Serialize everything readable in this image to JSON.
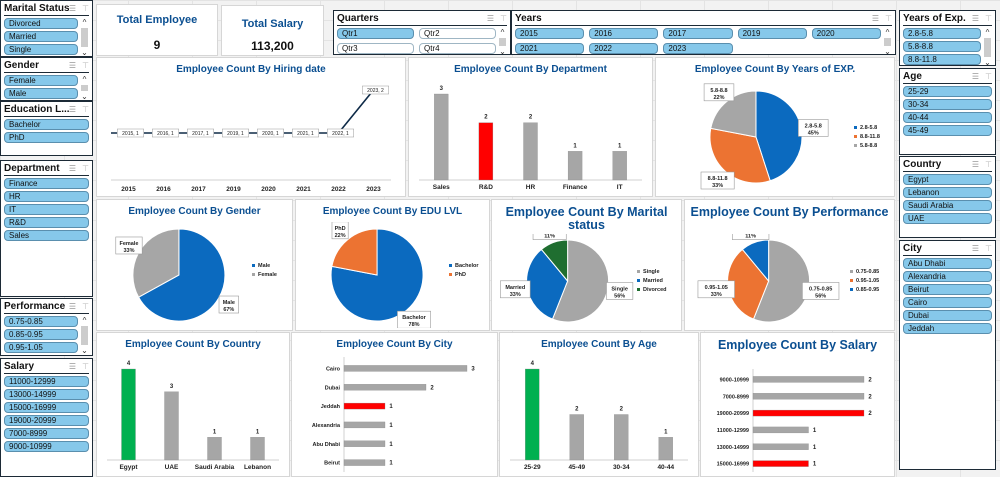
{
  "colors": {
    "blue": "#0b6abf",
    "orange": "#ec7332",
    "gray": "#a6a6a6",
    "green": "#1f6e30",
    "red": "#ff0000",
    "bar_green": "#00b050",
    "title_blue": "#0b4f91",
    "chip": "#86c8ea"
  },
  "icons": {
    "multiselect": "multi-select-icon",
    "clear_filter": "clear-filter-icon",
    "scroll_up": "chevron-up-icon",
    "scroll_down": "chevron-down-icon"
  },
  "icon_glyphs": {
    "multiselect": "☰",
    "clear_filter": "⊤",
    "up": "^",
    "down": "⌄"
  },
  "slicers": {
    "marital": {
      "title": "Marital Status",
      "items": [
        "Divorced",
        "Married",
        "Single"
      ]
    },
    "gender": {
      "title": "Gender",
      "items": [
        "Female",
        "Male"
      ]
    },
    "education": {
      "title": "Education L...",
      "items": [
        "Bachelor",
        "PhD"
      ]
    },
    "department": {
      "title": "Department",
      "items": [
        "Finance",
        "HR",
        "IT",
        "R&D",
        "Sales"
      ]
    },
    "performance": {
      "title": "Performance",
      "items": [
        "0.75-0.85",
        "0.85-0.95",
        "0.95-1.05"
      ]
    },
    "salary": {
      "title": "Salary",
      "items": [
        "11000-12999",
        "13000-14999",
        "15000-16999",
        "19000-20999",
        "7000-8999",
        "9000-10999"
      ]
    },
    "quarters": {
      "title": "Quarters",
      "items": [
        "Qtr1",
        "Qtr2",
        "Qtr3",
        "Qtr4"
      ],
      "selected": [
        "Qtr1"
      ]
    },
    "years": {
      "title": "Years",
      "items": [
        "2015",
        "2016",
        "2017",
        "2019",
        "2020",
        "2021",
        "2022",
        "2023"
      ]
    },
    "years_exp": {
      "title": "Years of Exp.",
      "items": [
        "2.8-5.8",
        "5.8-8.8",
        "8.8-11.8"
      ]
    },
    "age": {
      "title": "Age",
      "items": [
        "25-29",
        "30-34",
        "40-44",
        "45-49"
      ]
    },
    "country": {
      "title": "Country",
      "items": [
        "Egypt",
        "Lebanon",
        "Saudi Arabia",
        "UAE"
      ]
    },
    "city": {
      "title": "City",
      "items": [
        "Abu Dhabi",
        "Alexandria",
        "Beirut",
        "Cairo",
        "Dubai",
        "Jeddah"
      ]
    }
  },
  "kpis": {
    "total_employee": {
      "label": "Total Employee",
      "value": "9"
    },
    "total_salary": {
      "label": "Total Salary",
      "value": "113,200"
    }
  },
  "chart_data": [
    {
      "id": "hiring",
      "type": "line",
      "title": "Employee Count By Hiring date",
      "categories": [
        "2015",
        "2016",
        "2017",
        "2019",
        "2020",
        "2021",
        "2022",
        "2023"
      ],
      "values": [
        1,
        1,
        1,
        1,
        1,
        1,
        1,
        2
      ],
      "data_labels": [
        "2015, 1",
        "2016, 1",
        "2017, 1",
        "2019, 1",
        "2020, 1",
        "2021, 1",
        "2022, 1",
        "2023, 2"
      ]
    },
    {
      "id": "department",
      "type": "bar",
      "title": "Employee Count By Department",
      "categories": [
        "Sales",
        "R&D",
        "HR",
        "Finance",
        "IT"
      ],
      "values": [
        3,
        2,
        2,
        1,
        1
      ],
      "highlight": {
        "R&D": "red"
      }
    },
    {
      "id": "years_exp",
      "type": "pie",
      "title": "Employee Count By Years of EXP.",
      "slices": [
        {
          "label": "2.8-5.8",
          "value": 45,
          "color": "blue"
        },
        {
          "label": "8.8-11.8",
          "value": 33,
          "color": "orange"
        },
        {
          "label": "5.8-8.8",
          "value": 22,
          "color": "gray"
        }
      ],
      "legend": "right"
    },
    {
      "id": "gender",
      "type": "pie",
      "title": "Employee Count By Gender",
      "slices": [
        {
          "label": "Male",
          "value": 67,
          "color": "blue"
        },
        {
          "label": "Female",
          "value": 33,
          "color": "gray"
        }
      ],
      "legend": "right"
    },
    {
      "id": "edu",
      "type": "pie",
      "title": "Employee Count By EDU LVL",
      "slices": [
        {
          "label": "Bachelor",
          "value": 78,
          "color": "blue"
        },
        {
          "label": "PhD",
          "value": 22,
          "color": "orange"
        }
      ],
      "legend": "right"
    },
    {
      "id": "marital",
      "type": "pie",
      "title": "Employee Count By Marital status",
      "slices": [
        {
          "label": "Single",
          "value": 56,
          "color": "gray"
        },
        {
          "label": "Married",
          "value": 33,
          "color": "blue"
        },
        {
          "label": "Divorced",
          "value": 11,
          "color": "green"
        }
      ],
      "legend": "right"
    },
    {
      "id": "performance",
      "type": "pie",
      "title": "Employee Count By Performance",
      "slices": [
        {
          "label": "0.75-0.85",
          "value": 56,
          "color": "gray"
        },
        {
          "label": "0.95-1.05",
          "value": 33,
          "color": "orange"
        },
        {
          "label": "0.85-0.95",
          "value": 11,
          "color": "blue"
        }
      ],
      "legend": "right"
    },
    {
      "id": "country",
      "type": "bar",
      "title": "Employee Count By Country",
      "categories": [
        "Egypt",
        "UAE",
        "Saudi Arabia",
        "Lebanon"
      ],
      "values": [
        4,
        3,
        1,
        1
      ],
      "highlight": {
        "Egypt": "bar_green"
      }
    },
    {
      "id": "city",
      "type": "hbar",
      "title": "Employee Count By City",
      "categories": [
        "Cairo",
        "Dubai",
        "Jeddah",
        "Alexandria",
        "Abu Dhabi",
        "Beirut"
      ],
      "values": [
        3,
        2,
        1,
        1,
        1,
        1
      ],
      "highlight": {
        "Jeddah": "red"
      }
    },
    {
      "id": "age",
      "type": "bar",
      "title": "Employee Count By Age",
      "categories": [
        "25-29",
        "45-49",
        "30-34",
        "40-44"
      ],
      "values": [
        4,
        2,
        2,
        1
      ],
      "highlight": {
        "25-29": "bar_green"
      }
    },
    {
      "id": "salary",
      "type": "hbar",
      "title": "Employee Count By Salary",
      "categories": [
        "9000-10999",
        "7000-8999",
        "19000-20999",
        "11000-12999",
        "13000-14999",
        "15000-16999"
      ],
      "values": [
        2,
        2,
        2,
        1,
        1,
        1
      ],
      "highlight": {
        "19000-20999": "red",
        "15000-16999": "red"
      }
    }
  ]
}
